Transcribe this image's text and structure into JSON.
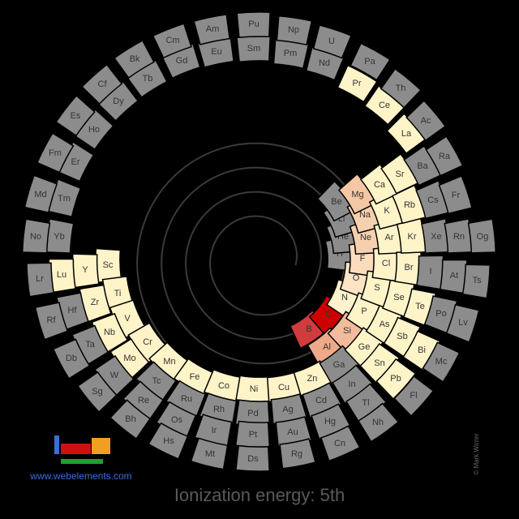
{
  "title": "Ionization energy: 5th",
  "url": "www.webelements.com",
  "credit": "© Mark Winter",
  "nodes": [
    {
      "symbol": "H",
      "fill": "#8c8c8c"
    },
    {
      "symbol": "He",
      "fill": "#8c8c8c"
    },
    {
      "symbol": "Li",
      "fill": "#8c8c8c"
    },
    {
      "symbol": "Be",
      "fill": "#8c8c8c"
    },
    {
      "symbol": "B",
      "fill": "#d03c3c"
    },
    {
      "symbol": "C",
      "fill": "#cc0000"
    },
    {
      "symbol": "N",
      "fill": "#fff2cc"
    },
    {
      "symbol": "O",
      "fill": "#fde4c4"
    },
    {
      "symbol": "F",
      "fill": "#fcdcbc"
    },
    {
      "symbol": "Ne",
      "fill": "#f6cfae"
    },
    {
      "symbol": "Na",
      "fill": "#f6cfae"
    },
    {
      "symbol": "Mg",
      "fill": "#f4c8a4"
    },
    {
      "symbol": "Al",
      "fill": "#eeaa88"
    },
    {
      "symbol": "Si",
      "fill": "#f2bc9c"
    },
    {
      "symbol": "P",
      "fill": "#fff4c8"
    },
    {
      "symbol": "S",
      "fill": "#fff4c8"
    },
    {
      "symbol": "Cl",
      "fill": "#fff4c8"
    },
    {
      "symbol": "Ar",
      "fill": "#fff4c8"
    },
    {
      "symbol": "K",
      "fill": "#fff4c8"
    },
    {
      "symbol": "Ca",
      "fill": "#fff4c8"
    },
    {
      "symbol": "Sc",
      "fill": "#fff4c8"
    },
    {
      "symbol": "Ti",
      "fill": "#fff4c8"
    },
    {
      "symbol": "V",
      "fill": "#fff4c8"
    },
    {
      "symbol": "Cr",
      "fill": "#fff4c8"
    },
    {
      "symbol": "Mn",
      "fill": "#fff4c8"
    },
    {
      "symbol": "Fe",
      "fill": "#fff4c8"
    },
    {
      "symbol": "Co",
      "fill": "#fff4c8"
    },
    {
      "symbol": "Ni",
      "fill": "#fff4c8"
    },
    {
      "symbol": "Cu",
      "fill": "#fff4c8"
    },
    {
      "symbol": "Zn",
      "fill": "#fff4c8"
    },
    {
      "symbol": "Ga",
      "fill": "#8c8c8c"
    },
    {
      "symbol": "Ge",
      "fill": "#fff4c8"
    },
    {
      "symbol": "As",
      "fill": "#fff4c8"
    },
    {
      "symbol": "Se",
      "fill": "#fff4c8"
    },
    {
      "symbol": "Br",
      "fill": "#fff4c8"
    },
    {
      "symbol": "Kr",
      "fill": "#fff4c8"
    },
    {
      "symbol": "Rb",
      "fill": "#fff4c8"
    },
    {
      "symbol": "Sr",
      "fill": "#fff4c8"
    },
    {
      "symbol": "Y",
      "fill": "#fff4c8"
    },
    {
      "symbol": "Zr",
      "fill": "#fff4c8"
    },
    {
      "symbol": "Nb",
      "fill": "#fff4c8"
    },
    {
      "symbol": "Mo",
      "fill": "#fff4c8"
    },
    {
      "symbol": "Tc",
      "fill": "#8c8c8c"
    },
    {
      "symbol": "Ru",
      "fill": "#8c8c8c"
    },
    {
      "symbol": "Rh",
      "fill": "#8c8c8c"
    },
    {
      "symbol": "Pd",
      "fill": "#8c8c8c"
    },
    {
      "symbol": "Ag",
      "fill": "#8c8c8c"
    },
    {
      "symbol": "Cd",
      "fill": "#8c8c8c"
    },
    {
      "symbol": "In",
      "fill": "#8c8c8c"
    },
    {
      "symbol": "Sn",
      "fill": "#fff4c8"
    },
    {
      "symbol": "Sb",
      "fill": "#fff4c8"
    },
    {
      "symbol": "Te",
      "fill": "#fff4c8"
    },
    {
      "symbol": "I",
      "fill": "#8c8c8c"
    },
    {
      "symbol": "Xe",
      "fill": "#8c8c8c"
    },
    {
      "symbol": "Cs",
      "fill": "#8c8c8c"
    },
    {
      "symbol": "Ba",
      "fill": "#8c8c8c"
    },
    {
      "symbol": "La",
      "fill": "#fff4c8"
    },
    {
      "symbol": "Ce",
      "fill": "#fff4c8"
    },
    {
      "symbol": "Pr",
      "fill": "#fff4c8"
    },
    {
      "symbol": "Nd",
      "fill": "#8c8c8c"
    },
    {
      "symbol": "Pm",
      "fill": "#8c8c8c"
    },
    {
      "symbol": "Sm",
      "fill": "#8c8c8c"
    },
    {
      "symbol": "Eu",
      "fill": "#8c8c8c"
    },
    {
      "symbol": "Gd",
      "fill": "#8c8c8c"
    },
    {
      "symbol": "Tb",
      "fill": "#8c8c8c"
    },
    {
      "symbol": "Dy",
      "fill": "#8c8c8c"
    },
    {
      "symbol": "Ho",
      "fill": "#8c8c8c"
    },
    {
      "symbol": "Er",
      "fill": "#8c8c8c"
    },
    {
      "symbol": "Tm",
      "fill": "#8c8c8c"
    },
    {
      "symbol": "Yb",
      "fill": "#8c8c8c"
    },
    {
      "symbol": "Lu",
      "fill": "#fff4c8"
    },
    {
      "symbol": "Hf",
      "fill": "#8c8c8c"
    },
    {
      "symbol": "Ta",
      "fill": "#8c8c8c"
    },
    {
      "symbol": "W",
      "fill": "#8c8c8c"
    },
    {
      "symbol": "Re",
      "fill": "#8c8c8c"
    },
    {
      "symbol": "Os",
      "fill": "#8c8c8c"
    },
    {
      "symbol": "Ir",
      "fill": "#8c8c8c"
    },
    {
      "symbol": "Pt",
      "fill": "#8c8c8c"
    },
    {
      "symbol": "Au",
      "fill": "#8c8c8c"
    },
    {
      "symbol": "Hg",
      "fill": "#8c8c8c"
    },
    {
      "symbol": "Tl",
      "fill": "#8c8c8c"
    },
    {
      "symbol": "Pb",
      "fill": "#fff4c8"
    },
    {
      "symbol": "Bi",
      "fill": "#fff4c8"
    },
    {
      "symbol": "Po",
      "fill": "#8c8c8c"
    },
    {
      "symbol": "At",
      "fill": "#8c8c8c"
    },
    {
      "symbol": "Rn",
      "fill": "#8c8c8c"
    },
    {
      "symbol": "Fr",
      "fill": "#8c8c8c"
    },
    {
      "symbol": "Ra",
      "fill": "#8c8c8c"
    },
    {
      "symbol": "Ac",
      "fill": "#8c8c8c"
    },
    {
      "symbol": "Th",
      "fill": "#8c8c8c"
    },
    {
      "symbol": "Pa",
      "fill": "#8c8c8c"
    },
    {
      "symbol": "U",
      "fill": "#8c8c8c"
    },
    {
      "symbol": "Np",
      "fill": "#8c8c8c"
    },
    {
      "symbol": "Pu",
      "fill": "#8c8c8c"
    },
    {
      "symbol": "Am",
      "fill": "#8c8c8c"
    },
    {
      "symbol": "Cm",
      "fill": "#8c8c8c"
    },
    {
      "symbol": "Bk",
      "fill": "#8c8c8c"
    },
    {
      "symbol": "Cf",
      "fill": "#8c8c8c"
    },
    {
      "symbol": "Es",
      "fill": "#8c8c8c"
    },
    {
      "symbol": "Fm",
      "fill": "#8c8c8c"
    },
    {
      "symbol": "Md",
      "fill": "#8c8c8c"
    },
    {
      "symbol": "No",
      "fill": "#8c8c8c"
    },
    {
      "symbol": "Lr",
      "fill": "#8c8c8c"
    },
    {
      "symbol": "Rf",
      "fill": "#8c8c8c"
    },
    {
      "symbol": "Db",
      "fill": "#8c8c8c"
    },
    {
      "symbol": "Sg",
      "fill": "#8c8c8c"
    },
    {
      "symbol": "Bh",
      "fill": "#8c8c8c"
    },
    {
      "symbol": "Hs",
      "fill": "#8c8c8c"
    },
    {
      "symbol": "Mt",
      "fill": "#8c8c8c"
    },
    {
      "symbol": "Ds",
      "fill": "#8c8c8c"
    },
    {
      "symbol": "Rg",
      "fill": "#8c8c8c"
    },
    {
      "symbol": "Cn",
      "fill": "#8c8c8c"
    },
    {
      "symbol": "Nh",
      "fill": "#8c8c8c"
    },
    {
      "symbol": "Fl",
      "fill": "#8c8c8c"
    },
    {
      "symbol": "Mc",
      "fill": "#8c8c8c"
    },
    {
      "symbol": "Lv",
      "fill": "#8c8c8c"
    },
    {
      "symbol": "Ts",
      "fill": "#8c8c8c"
    },
    {
      "symbol": "Og",
      "fill": "#8c8c8c"
    }
  ]
}
